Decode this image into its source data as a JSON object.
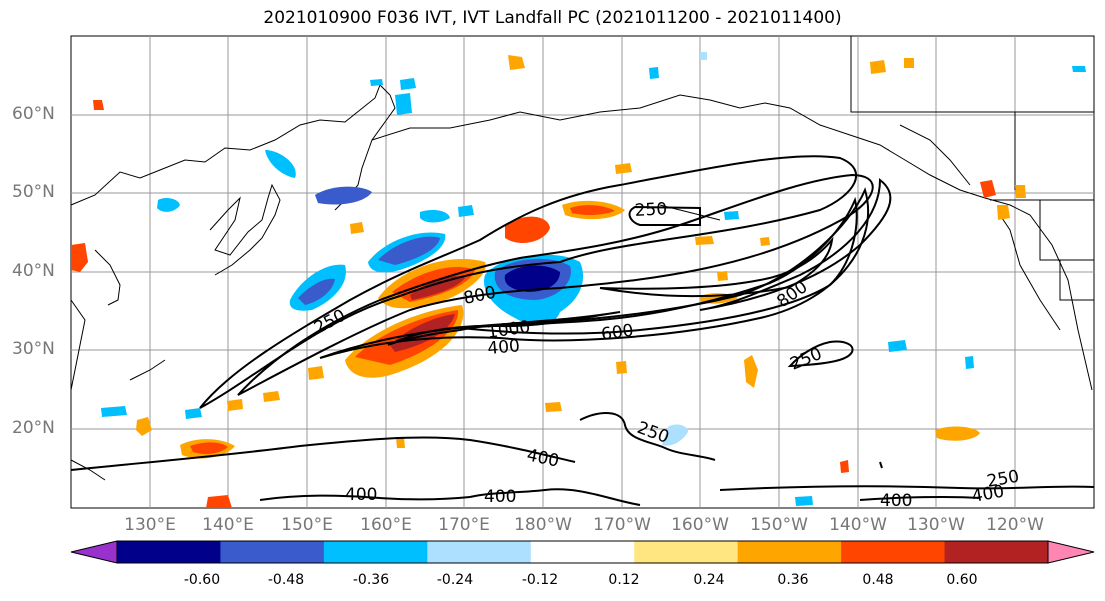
{
  "title": "2021010900 F036 IVT, IVT Landfall PC (2021011200 - 2021011400)",
  "lat_labels": [
    "60°N",
    "50°N",
    "40°N",
    "30°N",
    "20°N"
  ],
  "lon_labels": [
    "130°E",
    "140°E",
    "150°E",
    "160°E",
    "170°E",
    "180°W",
    "170°W",
    "160°W",
    "150°W",
    "140°W",
    "130°W",
    "120°W"
  ],
  "contour_labels": [
    "250",
    "250",
    "800",
    "1000",
    "400",
    "600",
    "800",
    "250",
    "250",
    "400",
    "400",
    "400",
    "400",
    "250",
    "400"
  ],
  "colorbar": {
    "colors": [
      "#9932CC",
      "#00008B",
      "#3A5BCC",
      "#00BFFF",
      "#ADDFFF",
      "#FFFFFF",
      "#FFE680",
      "#FFA500",
      "#FF4500",
      "#B22222",
      "#FF85B3"
    ],
    "tick_labels": [
      "-0.60",
      "-0.48",
      "-0.36",
      "-0.24",
      "-0.12",
      "0.12",
      "0.24",
      "0.36",
      "0.48",
      "0.60"
    ]
  }
}
